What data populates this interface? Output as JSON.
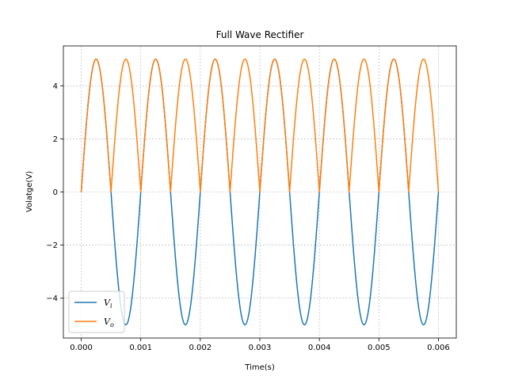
{
  "chart_data": {
    "type": "line",
    "title": "Full Wave Rectifier",
    "xlabel": "Time(s)",
    "ylabel": "Volatge(V)",
    "xlim": [
      -0.0003,
      0.0063
    ],
    "ylim": [
      -5.5,
      5.5
    ],
    "xticks": [
      0.0,
      0.001,
      0.002,
      0.003,
      0.004,
      0.005,
      0.006
    ],
    "xtick_labels": [
      "0.000",
      "0.001",
      "0.002",
      "0.003",
      "0.004",
      "0.005",
      "0.006"
    ],
    "yticks": [
      -4,
      -2,
      0,
      2,
      4
    ],
    "ytick_labels": [
      "−4",
      "−2",
      "0",
      "2",
      "4"
    ],
    "grid": true,
    "legend_position": "lower-left",
    "signal": {
      "amplitude": 5,
      "frequency_hz": 1000,
      "t_start": 0,
      "t_end": 0.006
    },
    "series": [
      {
        "name_main": "V",
        "name_sub": "i",
        "color": "#1f77b4",
        "kind": "sine"
      },
      {
        "name_main": "V",
        "name_sub": "o",
        "color": "#ff7f0e",
        "kind": "rectified"
      }
    ]
  }
}
